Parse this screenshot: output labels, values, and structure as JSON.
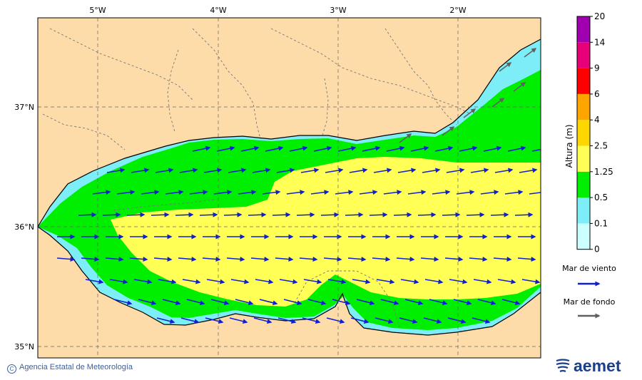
{
  "map": {
    "lon_labels": [
      "5°W",
      "4°W",
      "3°W",
      "2°W"
    ],
    "lat_labels": [
      "37°N",
      "36°N",
      "35°N"
    ],
    "lon_values": [
      -5,
      -4,
      -3,
      -2
    ],
    "lat_values": [
      37,
      36,
      35
    ],
    "extent": {
      "lon_min": -5.5,
      "lon_max": -1.25,
      "lat_min": 34.9,
      "lat_max": 37.75
    },
    "colors": {
      "land": "#fddcaa",
      "band_0_01": "#ccffff",
      "band_01_05": "#7deef8",
      "band_05_125": "#00ee00",
      "band_125_25": "#ffff55",
      "wind_arrow": "#1020d0",
      "swell_arrow": "#606060"
    }
  },
  "colorbar": {
    "title": "Altura (m)",
    "levels": [
      "20",
      "14",
      "9",
      "6",
      "4",
      "2.5",
      "1.25",
      "0.5",
      "0.1",
      "0"
    ],
    "colors": [
      "#ccffff",
      "#7deef8",
      "#00ee00",
      "#ffff55",
      "#ffd700",
      "#ffa500",
      "#ff0000",
      "#e8007a",
      "#a000b0"
    ]
  },
  "legend": {
    "wind_label": "Mar de viento",
    "swell_label": "Mar de fondo",
    "wind_icon": "blue-arrow",
    "swell_icon": "gray-arrow"
  },
  "footer": {
    "copyright": "Agencia Estatal de Meteorología",
    "logo_text": "aemet"
  }
}
